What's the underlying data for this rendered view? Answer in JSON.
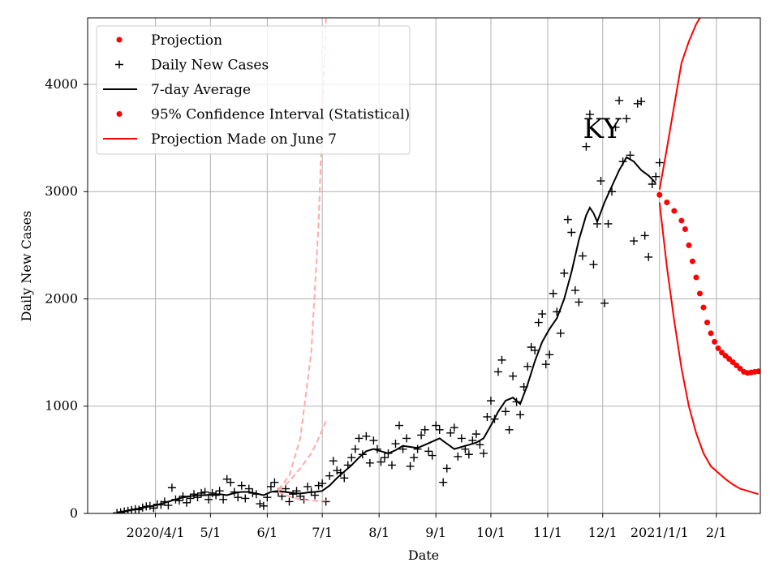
{
  "chart_data": {
    "type": "scatter",
    "title": "",
    "annotation": "KY",
    "xlabel": "Date",
    "ylabel": "Daily New Cases",
    "grid": true,
    "legend_position": "top-left",
    "x_unit": "days since 2020-03-01",
    "xlim": [
      -6,
      361
    ],
    "ylim": [
      0,
      4620
    ],
    "x_ticks": [
      {
        "day": 31,
        "label": "2020/4/1"
      },
      {
        "day": 61,
        "label": "5/1"
      },
      {
        "day": 92,
        "label": "6/1"
      },
      {
        "day": 122,
        "label": "7/1"
      },
      {
        "day": 153,
        "label": "8/1"
      },
      {
        "day": 184,
        "label": "9/1"
      },
      {
        "day": 214,
        "label": "10/1"
      },
      {
        "day": 245,
        "label": "11/1"
      },
      {
        "day": 275,
        "label": "12/1"
      },
      {
        "day": 306,
        "label": "2021/1/1"
      },
      {
        "day": 337,
        "label": "2/1"
      }
    ],
    "y_ticks": [
      0,
      1000,
      2000,
      3000,
      4000
    ],
    "legend": [
      {
        "label": "Projection",
        "style": "red-dot"
      },
      {
        "label": "Daily New Cases",
        "style": "black-plus"
      },
      {
        "label": "7-day Average",
        "style": "black-line"
      },
      {
        "label": "95% Confidence Interval (Statistical)",
        "style": "red-dot"
      },
      {
        "label": "Projection Made on June 7",
        "style": "red-line"
      }
    ],
    "series": [
      {
        "name": "Daily New Cases",
        "marker": "+",
        "color": "#000000",
        "points": [
          [
            10,
            5
          ],
          [
            12,
            10
          ],
          [
            14,
            18
          ],
          [
            16,
            25
          ],
          [
            18,
            32
          ],
          [
            20,
            40
          ],
          [
            22,
            35
          ],
          [
            24,
            55
          ],
          [
            26,
            65
          ],
          [
            28,
            70
          ],
          [
            30,
            50
          ],
          [
            32,
            85
          ],
          [
            34,
            80
          ],
          [
            36,
            110
          ],
          [
            38,
            75
          ],
          [
            40,
            240
          ],
          [
            42,
            130
          ],
          [
            44,
            120
          ],
          [
            46,
            160
          ],
          [
            48,
            100
          ],
          [
            50,
            140
          ],
          [
            52,
            180
          ],
          [
            54,
            150
          ],
          [
            56,
            190
          ],
          [
            58,
            200
          ],
          [
            60,
            130
          ],
          [
            62,
            190
          ],
          [
            64,
            170
          ],
          [
            66,
            210
          ],
          [
            68,
            130
          ],
          [
            70,
            320
          ],
          [
            72,
            290
          ],
          [
            74,
            200
          ],
          [
            76,
            150
          ],
          [
            78,
            260
          ],
          [
            80,
            140
          ],
          [
            82,
            230
          ],
          [
            84,
            190
          ],
          [
            86,
            180
          ],
          [
            88,
            90
          ],
          [
            90,
            70
          ],
          [
            92,
            150
          ],
          [
            94,
            250
          ],
          [
            96,
            290
          ],
          [
            98,
            200
          ],
          [
            100,
            160
          ],
          [
            102,
            230
          ],
          [
            104,
            110
          ],
          [
            106,
            180
          ],
          [
            108,
            210
          ],
          [
            110,
            160
          ],
          [
            112,
            130
          ],
          [
            114,
            250
          ],
          [
            116,
            200
          ],
          [
            118,
            170
          ],
          [
            120,
            260
          ],
          [
            122,
            280
          ],
          [
            124,
            110
          ],
          [
            126,
            350
          ],
          [
            128,
            490
          ],
          [
            130,
            400
          ],
          [
            132,
            380
          ],
          [
            134,
            330
          ],
          [
            136,
            450
          ],
          [
            138,
            520
          ],
          [
            140,
            600
          ],
          [
            142,
            700
          ],
          [
            144,
            550
          ],
          [
            146,
            720
          ],
          [
            148,
            470
          ],
          [
            150,
            680
          ],
          [
            152,
            600
          ],
          [
            154,
            480
          ],
          [
            156,
            520
          ],
          [
            158,
            560
          ],
          [
            160,
            450
          ],
          [
            162,
            650
          ],
          [
            164,
            820
          ],
          [
            166,
            600
          ],
          [
            168,
            700
          ],
          [
            170,
            440
          ],
          [
            172,
            520
          ],
          [
            174,
            600
          ],
          [
            176,
            730
          ],
          [
            178,
            780
          ],
          [
            180,
            580
          ],
          [
            182,
            540
          ],
          [
            184,
            820
          ],
          [
            186,
            780
          ],
          [
            188,
            290
          ],
          [
            190,
            420
          ],
          [
            192,
            750
          ],
          [
            194,
            800
          ],
          [
            196,
            530
          ],
          [
            198,
            700
          ],
          [
            200,
            600
          ],
          [
            202,
            550
          ],
          [
            204,
            680
          ],
          [
            206,
            740
          ],
          [
            208,
            640
          ],
          [
            210,
            560
          ],
          [
            212,
            900
          ],
          [
            214,
            1050
          ],
          [
            216,
            880
          ],
          [
            218,
            1320
          ],
          [
            220,
            1430
          ],
          [
            222,
            950
          ],
          [
            224,
            780
          ],
          [
            226,
            1280
          ],
          [
            228,
            1040
          ],
          [
            230,
            920
          ],
          [
            232,
            1180
          ],
          [
            234,
            1370
          ],
          [
            236,
            1550
          ],
          [
            238,
            1520
          ],
          [
            240,
            1780
          ],
          [
            242,
            1860
          ],
          [
            244,
            1390
          ],
          [
            246,
            1480
          ],
          [
            248,
            2050
          ],
          [
            250,
            1880
          ],
          [
            252,
            1680
          ],
          [
            254,
            2240
          ],
          [
            256,
            2740
          ],
          [
            258,
            2620
          ],
          [
            260,
            2080
          ],
          [
            262,
            1970
          ],
          [
            264,
            2400
          ],
          [
            266,
            3420
          ],
          [
            268,
            3720
          ],
          [
            270,
            2320
          ],
          [
            272,
            2700
          ],
          [
            274,
            3100
          ],
          [
            276,
            1960
          ],
          [
            278,
            2700
          ],
          [
            280,
            3000
          ],
          [
            282,
            3600
          ],
          [
            284,
            3850
          ],
          [
            286,
            3280
          ],
          [
            288,
            3680
          ],
          [
            290,
            3340
          ],
          [
            292,
            2540
          ],
          [
            294,
            3820
          ],
          [
            296,
            3840
          ],
          [
            298,
            2590
          ],
          [
            300,
            2390
          ],
          [
            302,
            3070
          ],
          [
            304,
            3140
          ],
          [
            306,
            3270
          ]
        ]
      },
      {
        "name": "7-day Average",
        "style": "line",
        "color": "#000000",
        "points": [
          [
            10,
            10
          ],
          [
            14,
            20
          ],
          [
            18,
            35
          ],
          [
            22,
            45
          ],
          [
            26,
            60
          ],
          [
            30,
            70
          ],
          [
            34,
            90
          ],
          [
            38,
            110
          ],
          [
            42,
            130
          ],
          [
            46,
            150
          ],
          [
            50,
            160
          ],
          [
            54,
            170
          ],
          [
            58,
            170
          ],
          [
            62,
            175
          ],
          [
            66,
            180
          ],
          [
            70,
            170
          ],
          [
            74,
            190
          ],
          [
            78,
            200
          ],
          [
            82,
            200
          ],
          [
            86,
            185
          ],
          [
            90,
            170
          ],
          [
            94,
            200
          ],
          [
            98,
            210
          ],
          [
            102,
            200
          ],
          [
            106,
            190
          ],
          [
            110,
            185
          ],
          [
            114,
            195
          ],
          [
            118,
            200
          ],
          [
            122,
            210
          ],
          [
            126,
            260
          ],
          [
            130,
            330
          ],
          [
            134,
            390
          ],
          [
            138,
            450
          ],
          [
            142,
            520
          ],
          [
            146,
            580
          ],
          [
            150,
            600
          ],
          [
            154,
            580
          ],
          [
            158,
            560
          ],
          [
            162,
            590
          ],
          [
            166,
            630
          ],
          [
            170,
            620
          ],
          [
            174,
            610
          ],
          [
            178,
            640
          ],
          [
            182,
            670
          ],
          [
            186,
            700
          ],
          [
            190,
            650
          ],
          [
            194,
            600
          ],
          [
            198,
            620
          ],
          [
            202,
            640
          ],
          [
            206,
            660
          ],
          [
            210,
            700
          ],
          [
            214,
            820
          ],
          [
            218,
            950
          ],
          [
            222,
            1050
          ],
          [
            226,
            1080
          ],
          [
            230,
            1020
          ],
          [
            234,
            1200
          ],
          [
            238,
            1420
          ],
          [
            242,
            1600
          ],
          [
            246,
            1720
          ],
          [
            250,
            1820
          ],
          [
            254,
            2000
          ],
          [
            258,
            2250
          ],
          [
            262,
            2550
          ],
          [
            266,
            2780
          ],
          [
            268,
            2850
          ],
          [
            270,
            2800
          ],
          [
            272,
            2720
          ],
          [
            276,
            2900
          ],
          [
            280,
            3050
          ],
          [
            284,
            3200
          ],
          [
            288,
            3320
          ],
          [
            292,
            3280
          ],
          [
            296,
            3200
          ],
          [
            300,
            3150
          ],
          [
            304,
            3080
          ]
        ]
      },
      {
        "name": "Projection",
        "marker": "dot",
        "color": "#ff0000",
        "points": [
          [
            306,
            2970
          ],
          [
            310,
            2900
          ],
          [
            314,
            2820
          ],
          [
            318,
            2730
          ],
          [
            320,
            2650
          ],
          [
            322,
            2500
          ],
          [
            324,
            2350
          ],
          [
            326,
            2200
          ],
          [
            328,
            2050
          ],
          [
            330,
            1920
          ],
          [
            332,
            1780
          ],
          [
            334,
            1680
          ],
          [
            336,
            1600
          ],
          [
            338,
            1540
          ],
          [
            340,
            1500
          ],
          [
            342,
            1470
          ],
          [
            344,
            1440
          ],
          [
            346,
            1410
          ],
          [
            348,
            1380
          ],
          [
            350,
            1350
          ],
          [
            352,
            1320
          ],
          [
            354,
            1310
          ],
          [
            356,
            1315
          ],
          [
            358,
            1320
          ],
          [
            360,
            1325
          ]
        ]
      },
      {
        "name": "95% Confidence Interval upper",
        "style": "line",
        "color": "#ff0000",
        "points": [
          [
            306,
            3020
          ],
          [
            310,
            3400
          ],
          [
            314,
            3800
          ],
          [
            318,
            4200
          ],
          [
            322,
            4400
          ],
          [
            326,
            4560
          ],
          [
            328,
            4620
          ]
        ]
      },
      {
        "name": "95% Confidence Interval lower",
        "style": "line",
        "color": "#ff0000",
        "points": [
          [
            306,
            2900
          ],
          [
            310,
            2300
          ],
          [
            314,
            1800
          ],
          [
            318,
            1350
          ],
          [
            322,
            1000
          ],
          [
            326,
            750
          ],
          [
            330,
            560
          ],
          [
            334,
            440
          ],
          [
            338,
            380
          ],
          [
            342,
            320
          ],
          [
            346,
            270
          ],
          [
            350,
            230
          ],
          [
            354,
            210
          ],
          [
            358,
            190
          ],
          [
            360,
            180
          ]
        ]
      },
      {
        "name": "Projection Made on June 7 (upper)",
        "style": "dashed",
        "color": "#ffaaaa",
        "points": [
          [
            98,
            220
          ],
          [
            104,
            350
          ],
          [
            110,
            700
          ],
          [
            116,
            1500
          ],
          [
            120,
            2700
          ],
          [
            124,
            4620
          ]
        ]
      },
      {
        "name": "Projection Made on June 7 (mid)",
        "style": "dashed",
        "color": "#ffaaaa",
        "points": [
          [
            98,
            210
          ],
          [
            104,
            300
          ],
          [
            110,
            420
          ],
          [
            116,
            560
          ],
          [
            120,
            700
          ],
          [
            124,
            860
          ]
        ]
      },
      {
        "name": "Projection Made on June 7 (lower)",
        "style": "dashed",
        "color": "#ffaaaa",
        "points": [
          [
            98,
            200
          ],
          [
            104,
            160
          ],
          [
            110,
            130
          ],
          [
            116,
            120
          ],
          [
            120,
            115
          ],
          [
            124,
            120
          ]
        ]
      }
    ]
  }
}
